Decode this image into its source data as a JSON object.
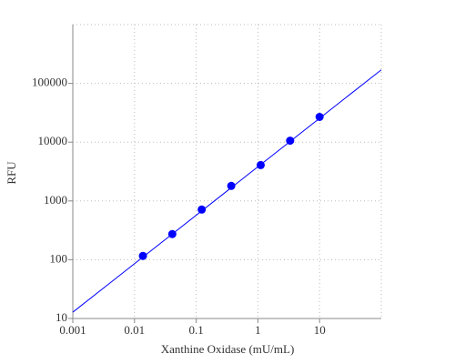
{
  "chart_data": {
    "type": "scatter",
    "x_label": "Xanthine Oxidase (mU/mL)",
    "y_label": "RFU",
    "xscale": "log",
    "yscale": "log",
    "grid": true,
    "xlim": [
      0.001,
      100
    ],
    "ylim": [
      10,
      1000000
    ],
    "xticks": [
      0.001,
      0.01,
      0.1,
      1,
      10
    ],
    "yticks": [
      10,
      100,
      1000,
      10000,
      100000
    ],
    "points": {
      "color": "#0000ff",
      "x": [
        0.0137,
        0.041,
        0.123,
        0.37,
        1.11,
        3.33,
        10
      ],
      "values": [
        116,
        273,
        713,
        1800,
        4070,
        10600,
        26900
      ]
    },
    "fit": {
      "color": "#0000ff",
      "x": [
        0.001,
        100
      ],
      "values": [
        12.8,
        170000
      ]
    }
  }
}
